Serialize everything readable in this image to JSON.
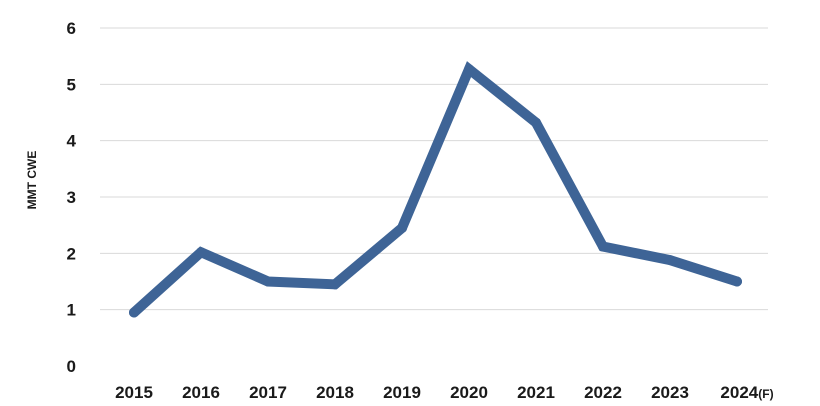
{
  "chart_data": {
    "type": "line",
    "title": "",
    "xlabel": "",
    "ylabel": "MMT CWE",
    "categories": [
      "2015",
      "2016",
      "2017",
      "2018",
      "2019",
      "2020",
      "2021",
      "2022",
      "2023",
      "2024"
    ],
    "x_tick_suffix": "(F)",
    "series": [
      {
        "values": [
          0.95,
          2.02,
          1.5,
          1.45,
          2.45,
          5.27,
          4.32,
          2.12,
          1.88,
          1.5
        ],
        "color": "#3e6496"
      }
    ],
    "ylim": [
      0,
      6
    ],
    "y_ticks": [
      "0",
      "1",
      "2",
      "3",
      "4",
      "5",
      "6"
    ],
    "grid": true,
    "legend": "none"
  }
}
